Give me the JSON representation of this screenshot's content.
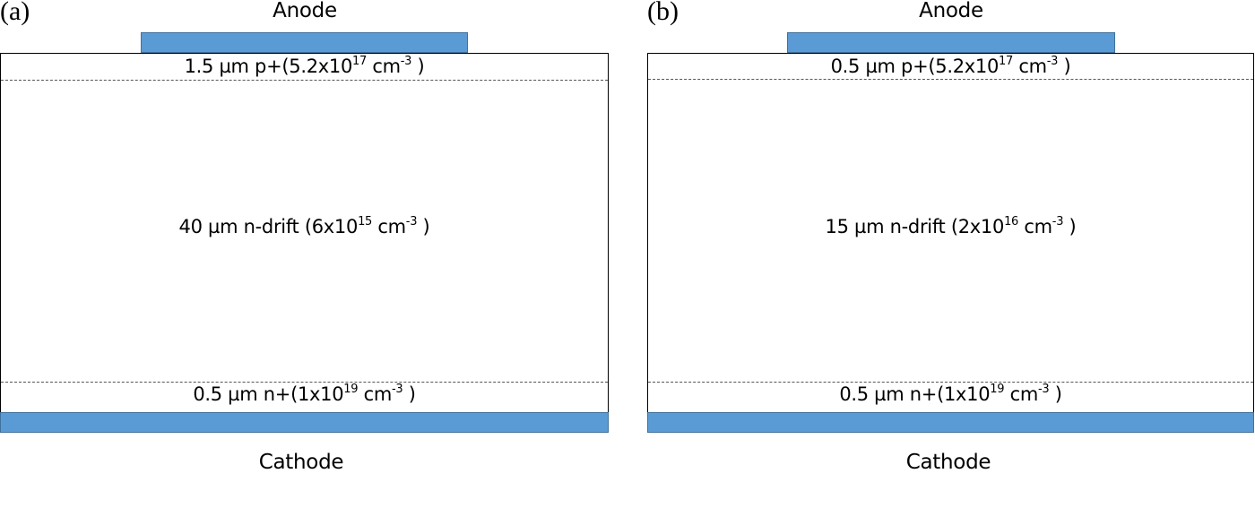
{
  "colors": {
    "electrode": "#5b9bd5",
    "electrode_border": "#41719c"
  },
  "panels": [
    {
      "label": "(a)",
      "anode": "Anode",
      "cathode": "Cathode",
      "p_layer": {
        "pre": "1.5 µm p+(5.2x10",
        "exp": "17",
        "mid": " cm",
        "exp2": "-3",
        "post": " )"
      },
      "drift": {
        "pre": "40 µm n-drift (6x10",
        "exp": "15",
        "mid": " cm",
        "exp2": "-3",
        "post": " )"
      },
      "n_layer": {
        "pre": "0.5 µm n+(1x10",
        "exp": "19",
        "mid": " cm",
        "exp2": "-3",
        "post": " )"
      }
    },
    {
      "label": "(b)",
      "anode": "Anode",
      "cathode": "Cathode",
      "p_layer": {
        "pre": "0.5 µm p+(5.2x10",
        "exp": "17",
        "mid": " cm",
        "exp2": "-3",
        "post": " )"
      },
      "drift": {
        "pre": "15  µm n-drift (2x10",
        "exp": "16",
        "mid": " cm",
        "exp2": "-3",
        "post": " )"
      },
      "n_layer": {
        "pre": "0.5 µm n+(1x10",
        "exp": "19",
        "mid": " cm",
        "exp2": "-3",
        "post": " )"
      }
    }
  ]
}
